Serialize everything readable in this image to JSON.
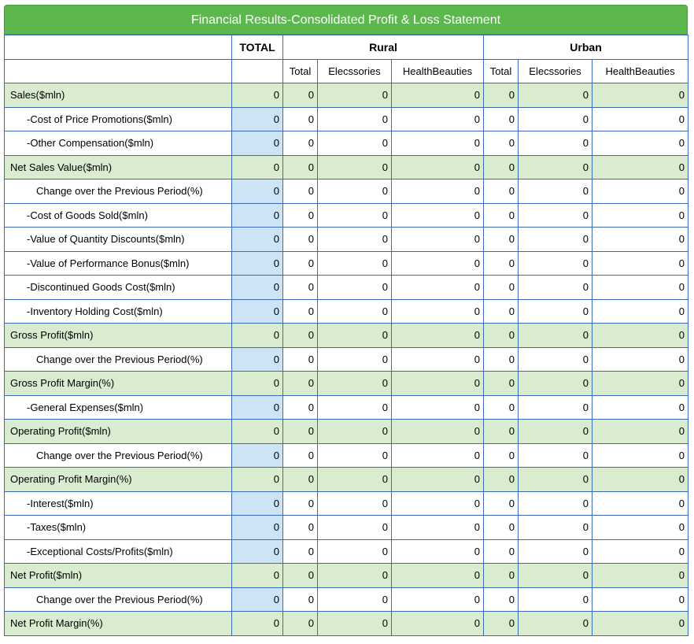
{
  "title": "Financial Results-Consolidated Profit & Loss Statement",
  "header": {
    "total": "TOTAL",
    "groups": [
      "Rural",
      "Urban"
    ],
    "sub": [
      "Total",
      "Elecssories",
      "HealthBeauties",
      "Total",
      "Elecssories",
      "HealthBeauties"
    ]
  },
  "rows": [
    {
      "label": "Sales($mln)",
      "level": 0,
      "values": [
        "0",
        "0",
        "0",
        "0",
        "0",
        "0",
        "0"
      ]
    },
    {
      "label": "-Cost of Price Promotions($mln)",
      "level": 1,
      "values": [
        "0",
        "0",
        "0",
        "0",
        "0",
        "0",
        "0"
      ]
    },
    {
      "label": "-Other Compensation($mln)",
      "level": 1,
      "values": [
        "0",
        "0",
        "0",
        "0",
        "0",
        "0",
        "0"
      ]
    },
    {
      "label": "Net Sales Value($mln)",
      "level": 0,
      "values": [
        "0",
        "0",
        "0",
        "0",
        "0",
        "0",
        "0"
      ]
    },
    {
      "label": "Change over the Previous Period(%)",
      "level": 2,
      "values": [
        "0",
        "0",
        "0",
        "0",
        "0",
        "0",
        "0"
      ]
    },
    {
      "label": "-Cost of Goods Sold($mln)",
      "level": 1,
      "values": [
        "0",
        "0",
        "0",
        "0",
        "0",
        "0",
        "0"
      ]
    },
    {
      "label": "-Value of Quantity Discounts($mln)",
      "level": 1,
      "values": [
        "0",
        "0",
        "0",
        "0",
        "0",
        "0",
        "0"
      ]
    },
    {
      "label": "-Value of Performance Bonus($mln)",
      "level": 1,
      "values": [
        "0",
        "0",
        "0",
        "0",
        "0",
        "0",
        "0"
      ]
    },
    {
      "label": "-Discontinued Goods Cost($mln)",
      "level": 1,
      "values": [
        "0",
        "0",
        "0",
        "0",
        "0",
        "0",
        "0"
      ]
    },
    {
      "label": "-Inventory Holding Cost($mln)",
      "level": 1,
      "values": [
        "0",
        "0",
        "0",
        "0",
        "0",
        "0",
        "0"
      ]
    },
    {
      "label": "Gross Profit($mln)",
      "level": 0,
      "values": [
        "0",
        "0",
        "0",
        "0",
        "0",
        "0",
        "0"
      ]
    },
    {
      "label": "Change over the Previous Period(%)",
      "level": 2,
      "values": [
        "0",
        "0",
        "0",
        "0",
        "0",
        "0",
        "0"
      ]
    },
    {
      "label": "Gross Profit Margin(%)",
      "level": 0,
      "values": [
        "0",
        "0",
        "0",
        "0",
        "0",
        "0",
        "0"
      ]
    },
    {
      "label": "-General Expenses($mln)",
      "level": 1,
      "values": [
        "0",
        "0",
        "0",
        "0",
        "0",
        "0",
        "0"
      ]
    },
    {
      "label": "Operating Profit($mln)",
      "level": 0,
      "values": [
        "0",
        "0",
        "0",
        "0",
        "0",
        "0",
        "0"
      ]
    },
    {
      "label": "Change over the Previous Period(%)",
      "level": 2,
      "values": [
        "0",
        "0",
        "0",
        "0",
        "0",
        "0",
        "0"
      ]
    },
    {
      "label": "Operating Profit Margin(%)",
      "level": 0,
      "values": [
        "0",
        "0",
        "0",
        "0",
        "0",
        "0",
        "0"
      ]
    },
    {
      "label": "-Interest($mln)",
      "level": 1,
      "values": [
        "0",
        "0",
        "0",
        "0",
        "0",
        "0",
        "0"
      ]
    },
    {
      "label": "-Taxes($mln)",
      "level": 1,
      "values": [
        "0",
        "0",
        "0",
        "0",
        "0",
        "0",
        "0"
      ]
    },
    {
      "label": "-Exceptional Costs/Profits($mln)",
      "level": 1,
      "values": [
        "0",
        "0",
        "0",
        "0",
        "0",
        "0",
        "0"
      ]
    },
    {
      "label": "Net Profit($mln)",
      "level": 0,
      "values": [
        "0",
        "0",
        "0",
        "0",
        "0",
        "0",
        "0"
      ]
    },
    {
      "label": "Change over the Previous Period(%)",
      "level": 2,
      "values": [
        "0",
        "0",
        "0",
        "0",
        "0",
        "0",
        "0"
      ]
    },
    {
      "label": "Net Profit Margin(%)",
      "level": 0,
      "values": [
        "0",
        "0",
        "0",
        "0",
        "0",
        "0",
        "0"
      ]
    }
  ]
}
